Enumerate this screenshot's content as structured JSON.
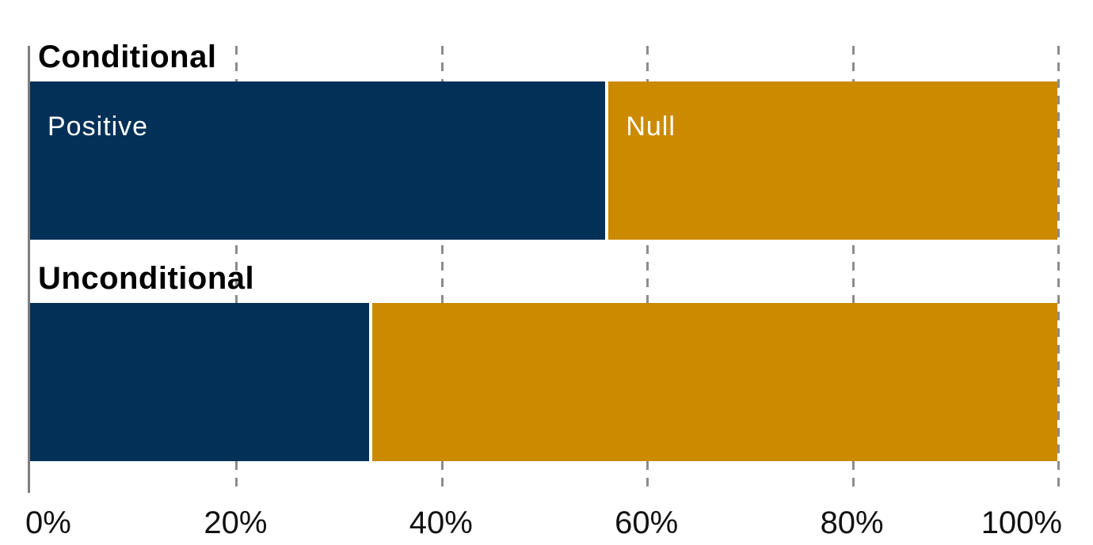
{
  "chart_data": {
    "type": "bar",
    "orientation": "horizontal",
    "stacked": true,
    "title": "",
    "xlabel": "",
    "ylabel": "",
    "x_range": [
      0,
      100
    ],
    "x_ticks": [
      "0%",
      "20%",
      "40%",
      "60%",
      "80%",
      "100%"
    ],
    "x_tick_values": [
      0,
      20,
      40,
      60,
      80,
      100
    ],
    "categories": [
      "Conditional",
      "Unconditional"
    ],
    "series": [
      {
        "name": "Positive",
        "color": "#033056",
        "values": [
          56,
          33
        ]
      },
      {
        "name": "Null",
        "color": "#CC8A00",
        "values": [
          44,
          67
        ]
      }
    ],
    "segment_labels_visible_on": "first-bar-only",
    "gridlines": {
      "style": "dashed",
      "color": "#8C8C8C",
      "positions": [
        20,
        40,
        60,
        80,
        100
      ]
    },
    "axis_line_color": "#7D7D7D",
    "legend_position": "labels-inside-bars",
    "text_color": "#000000",
    "background_color": "#FFFFFF"
  }
}
